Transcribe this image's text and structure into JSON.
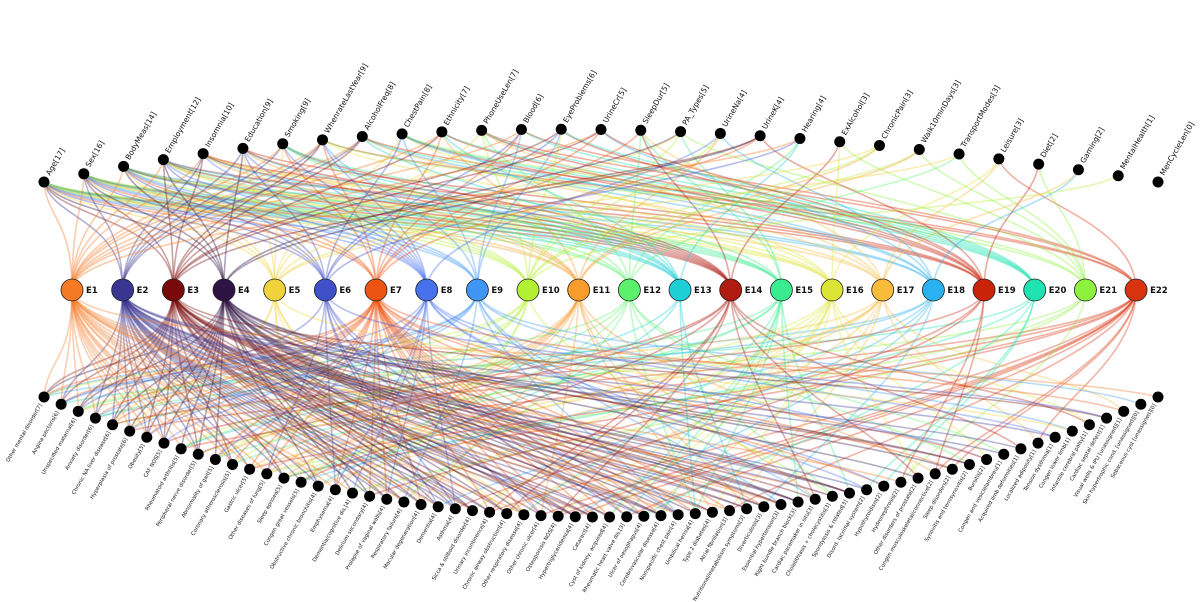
{
  "chart_data": {
    "type": "network",
    "title": "",
    "hubs": [
      {
        "label": "E1",
        "color": "#F57A23"
      },
      {
        "label": "E2",
        "color": "#3A3591"
      },
      {
        "label": "E3",
        "color": "#7A0A0A"
      },
      {
        "label": "E4",
        "color": "#2E1243"
      },
      {
        "label": "E5",
        "color": "#F0D23C"
      },
      {
        "label": "E6",
        "color": "#3F50C8"
      },
      {
        "label": "E7",
        "color": "#EE5411"
      },
      {
        "label": "E8",
        "color": "#4670EC"
      },
      {
        "label": "E9",
        "color": "#3E95F3"
      },
      {
        "label": "E10",
        "color": "#B3F033"
      },
      {
        "label": "E11",
        "color": "#F89C2C"
      },
      {
        "label": "E12",
        "color": "#5CF16D"
      },
      {
        "label": "E13",
        "color": "#1ECFD6"
      },
      {
        "label": "E14",
        "color": "#B01B12"
      },
      {
        "label": "E15",
        "color": "#3BEB8F"
      },
      {
        "label": "E16",
        "color": "#DCE537"
      },
      {
        "label": "E17",
        "color": "#F8BB3A"
      },
      {
        "label": "E18",
        "color": "#2BB1F0"
      },
      {
        "label": "E19",
        "color": "#C9230A"
      },
      {
        "label": "E20",
        "color": "#1EE3B0"
      },
      {
        "label": "E21",
        "color": "#8CF23E"
      },
      {
        "label": "E22",
        "color": "#D7330F"
      }
    ],
    "top_nodes": [
      "Age[17]",
      "Sex[16]",
      "BodyMeas[14]",
      "Employment[12]",
      "Insomnia[10]",
      "Education[9]",
      "Smoking[9]",
      "WhenrateLastYear[9]",
      "AlcoholFreq[8]",
      "ChestPain[8]",
      "Ethnicity[7]",
      "PhoneUseLen[7]",
      "Blood[6]",
      "EyeProblems[6]",
      "UrineCr[5]",
      "SleepDur[5]",
      "PA_Types[5]",
      "UrineNa[4]",
      "UrineK[4]",
      "Hearing[4]",
      "ExAlcohol[3]",
      "ChronicPain[3]",
      "Walk10minDays[3]",
      "TransportModes[3]",
      "Leisure[3]",
      "Diet[2]",
      "Gaming[2]",
      "MentalHealth[1]",
      "MenCycleLen[0]"
    ],
    "bottom_nodes": [
      "Other mental disorder[7]",
      "Angina pectoris[6]",
      "Unspecified maternal[6]",
      "Anxiety disorder[6]",
      "Chronic NA liver disease[6]",
      "Hyperplasia of prostate[6]",
      "Obesity[5]",
      "CAF NOS[5]",
      "Rheumatoid arthritis[5]",
      "Peripheral nerve disorder[5]",
      "Abnormality of gait[5]",
      "Coronary atherosclerosis[5]",
      "Gastric ulcer[5]",
      "Other diseases of lung[5]",
      "Sleep apnoea[5]",
      "Congen great vessels[5]",
      "Obstructive chronic bronchitis[4]",
      "Emphysema[4]",
      "Dementia/cognitive dis.[4]",
      "Delirium secondary[4]",
      "Prolapse of vaginal walls[4]",
      "Respiratory failure[4]",
      "Macular degeneration[4]",
      "Dementia[4]",
      "Asthma[4]",
      "Sicca & stilboid disorder[4]",
      "Urinary incontinence[4]",
      "Chronic airway obstruction[4]",
      "Other respiratory disease[4]",
      "Other chronic ulcer[4]",
      "Osteoporosis NOS[4]",
      "Hypertriglyceridemia[4]",
      "Cataract[4]",
      "Cyst of kidney, acquired[4]",
      "Rheumatic heart valve dis.[3]",
      "Ulcer of oesophagus[4]",
      "Cerebrovascular disease[4]",
      "Nonspecific chest pain[4]",
      "Umbilical hernia[4]",
      "Type 2 diabetes[4]",
      "Atrial fibrillation[3]",
      "Nutritional/metabolism symptoms[3]",
      "Diverticulosis[3]",
      "Essential hypertension[3]",
      "Right bundle branch block[3]",
      "Cardiac pacemaker in situ[3]",
      "Cholelithiasis + cholecystitis[3]",
      "Spondylosis & related[3]",
      "Disord. lacrimal system[2]",
      "Hypothyroidism[2]",
      "Hydronephrosis[2]",
      "Other disorders of prostate[2]",
      "Congen musculoskeletal/connective[2]",
      "Sleep disorders[2]",
      "Synovitis and tenosynovitis[2]",
      "Bursitis[2]",
      "Congen and vesiclelambreu[1]",
      "Acquired limb deformities[1]",
      "Localized adiposity[1]",
      "Tension dysthmia[1]",
      "Congen lower limb[1]",
      "Infantile cerebral palsy[1]",
      "Cardiac septal defect[1]",
      "Visual wells & IPU [unassigned][1]",
      "Skin hypertrophic cond. [unassigned][0]",
      "Sebaceous cyst [unassigned][0]"
    ]
  }
}
